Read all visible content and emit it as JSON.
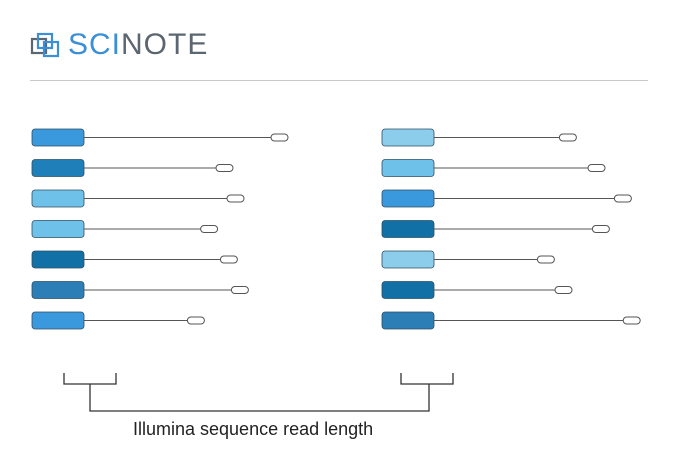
{
  "brand": {
    "name_part1": "SCI",
    "name_part2": "NOTE",
    "colors": {
      "sci": "#3a8fd6",
      "note": "#5b6670"
    }
  },
  "caption": "Illumina sequence read length",
  "diagram": {
    "left_reads": [
      {
        "block_color": "#3a98dc",
        "read_length": 0.85
      },
      {
        "block_color": "#1f7fb8",
        "read_length": 0.6
      },
      {
        "block_color": "#6ec1e8",
        "read_length": 0.65
      },
      {
        "block_color": "#6ec1e8",
        "read_length": 0.53
      },
      {
        "block_color": "#1170a6",
        "read_length": 0.62
      },
      {
        "block_color": "#2b7fb6",
        "read_length": 0.67
      },
      {
        "block_color": "#3a98dc",
        "read_length": 0.47
      }
    ],
    "right_reads": [
      {
        "block_color": "#8ccdec",
        "read_length": 0.57
      },
      {
        "block_color": "#6ec1e8",
        "read_length": 0.7
      },
      {
        "block_color": "#3a98dc",
        "read_length": 0.82
      },
      {
        "block_color": "#1170a6",
        "read_length": 0.72
      },
      {
        "block_color": "#8ccdec",
        "read_length": 0.47
      },
      {
        "block_color": "#1170a6",
        "read_length": 0.55
      },
      {
        "block_color": "#2b7fb6",
        "read_length": 0.86
      }
    ],
    "line_color": "#555555",
    "bracket_color": "#333333"
  }
}
